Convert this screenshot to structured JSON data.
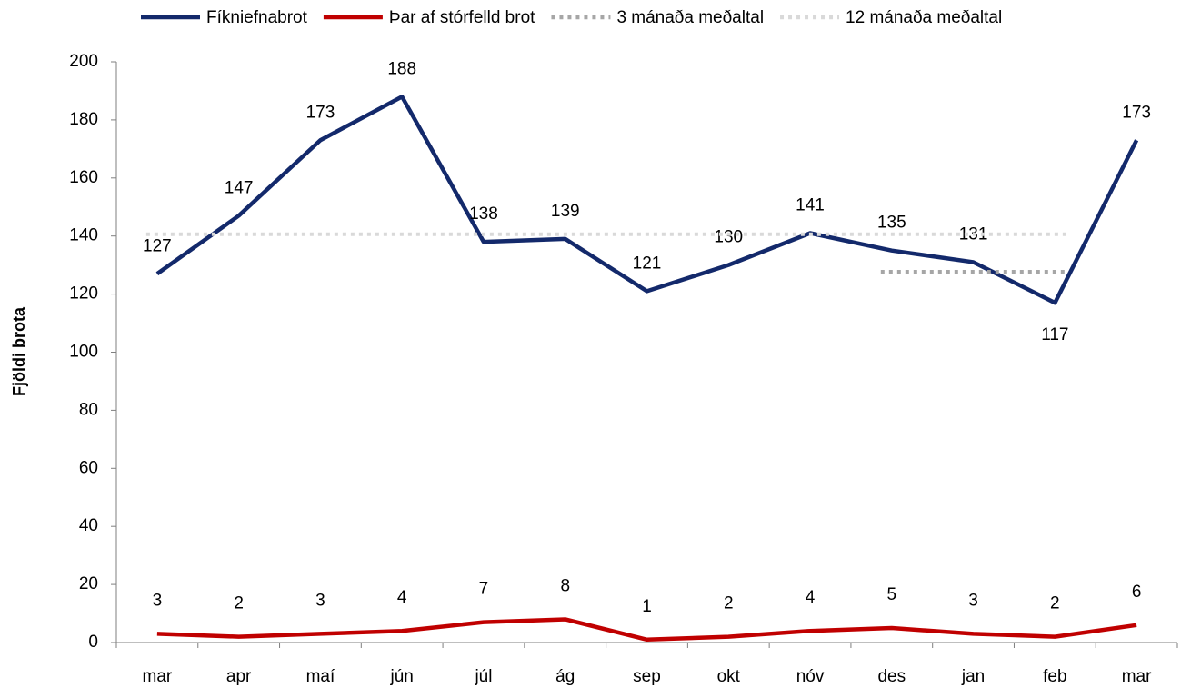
{
  "chart_data": {
    "type": "line",
    "y_label": "Fjöldi brota",
    "categories": [
      "mar",
      "apr",
      "maí",
      "jún",
      "júl",
      "ág",
      "sep",
      "okt",
      "nóv",
      "des",
      "jan",
      "feb",
      "mar"
    ],
    "series": [
      {
        "name": "Fíkniefnabrot",
        "color": "#13296b",
        "style": "solid",
        "data_labels": true,
        "values": [
          127,
          147,
          173,
          188,
          138,
          139,
          121,
          130,
          141,
          135,
          131,
          117,
          173
        ]
      },
      {
        "name": "Þar af stórfelld brot",
        "color": "#c00000",
        "style": "solid",
        "data_labels": true,
        "values": [
          3,
          2,
          3,
          4,
          7,
          8,
          1,
          2,
          4,
          5,
          3,
          2,
          6
        ]
      },
      {
        "name": "3 mánaða meðaltal",
        "color": "#a6a6a6",
        "style": "dotted",
        "data_labels": false,
        "values": [
          null,
          null,
          null,
          null,
          null,
          null,
          null,
          null,
          null,
          127.7,
          127.7,
          127.7,
          null
        ]
      },
      {
        "name": "12 mánaða meðaltal",
        "color": "#d9d9d9",
        "style": "dotted",
        "data_labels": false,
        "values": [
          140.6,
          140.6,
          140.6,
          140.6,
          140.6,
          140.6,
          140.6,
          140.6,
          140.6,
          140.6,
          140.6,
          140.6,
          null
        ]
      }
    ],
    "ylim": [
      0,
      200
    ],
    "yticks": [
      0,
      20,
      40,
      60,
      80,
      100,
      120,
      140,
      160,
      180,
      200
    ],
    "legend": "top",
    "grid": false
  }
}
